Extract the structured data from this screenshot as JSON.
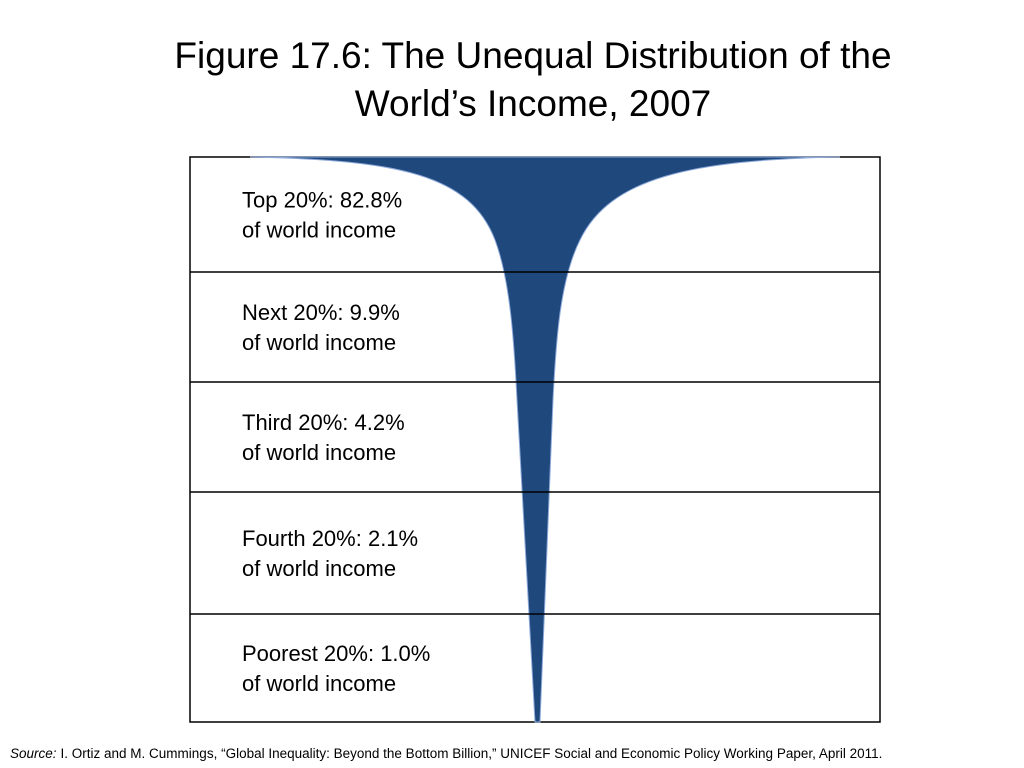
{
  "title": "Figure 17.6: The Unequal Distribution of the World’s Income, 2007",
  "rows": [
    {
      "label": "Top 20%: 82.8%",
      "note": "of world income"
    },
    {
      "label": "Next 20%: 9.9%",
      "note": "of world income"
    },
    {
      "label": "Third 20%: 4.2%",
      "note": "of world income"
    },
    {
      "label": "Fourth 20%: 2.1%",
      "note": "of world income"
    },
    {
      "label": "Poorest 20%: 1.0%",
      "note": "of world income"
    }
  ],
  "source": {
    "label": "Source:",
    "text": "I. Ortiz and M. Cummings, “Global Inequality: Beyond the Bottom Billion,” UNICEF Social and Economic Policy Working Paper, April 2011."
  }
}
